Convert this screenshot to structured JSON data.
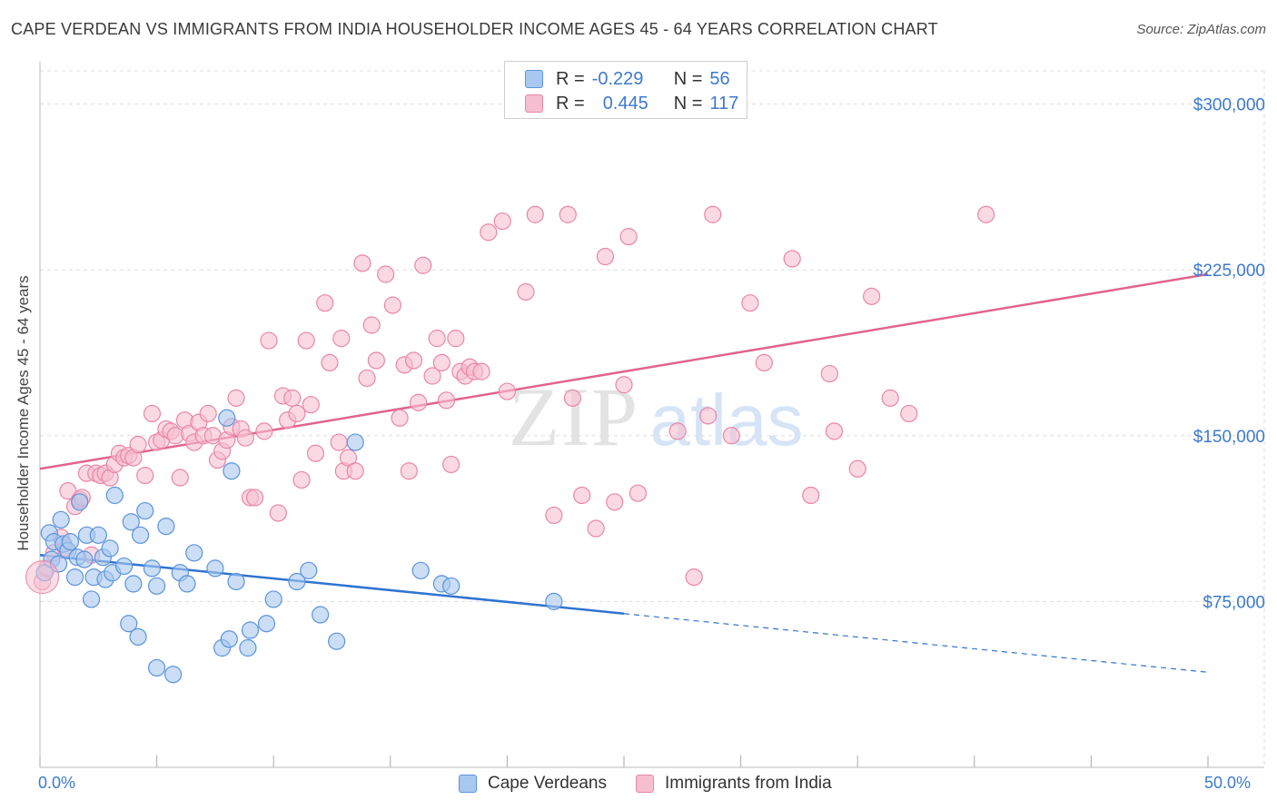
{
  "header": {
    "title": "CAPE VERDEAN VS IMMIGRANTS FROM INDIA HOUSEHOLDER INCOME AGES 45 - 64 YEARS CORRELATION CHART",
    "source": "Source: ZipAtlas.com"
  },
  "stats_legend": {
    "rows": [
      {
        "r_label": "R =",
        "r_value": "-0.229",
        "n_label": "N =",
        "n_value": "56"
      },
      {
        "r_label": "R =",
        "r_value": "0.445",
        "n_label": "N =",
        "n_value": "117"
      }
    ]
  },
  "watermark": {
    "part1": "ZIP",
    "part2": "atlas"
  },
  "colors": {
    "blue_fill": "#a9c8f0",
    "blue_stroke": "#5b93dc",
    "blue_line": "#2f74d0",
    "pink_fill": "#f6bfd0",
    "pink_stroke": "#e986a8",
    "pink_line": "#e0648f",
    "axis_text": "#3d79d0",
    "grid": "#dcdcdc"
  },
  "chart_data": {
    "type": "scatter",
    "title": "CAPE VERDEAN VS IMMIGRANTS FROM INDIA HOUSEHOLDER INCOME AGES 45 - 64 YEARS CORRELATION CHART",
    "xlabel": "",
    "ylabel": "Householder Income Ages 45 - 64 years",
    "xlim": [
      0,
      50
    ],
    "ylim": [
      0,
      315000
    ],
    "x_tick_labels": [
      "0.0%",
      "50.0%"
    ],
    "y_ticks": [
      75000,
      150000,
      225000,
      300000
    ],
    "y_tick_labels": [
      "$75,000",
      "$150,000",
      "$225,000",
      "$300,000"
    ],
    "grid": true,
    "legend_position": "bottom-center",
    "series": [
      {
        "name": "Cape Verdeans",
        "color": "#a9c8f0",
        "trend": {
          "x0": 0,
          "y0": 96000,
          "x1": 25,
          "y1": 69500,
          "dashed_to_x": 50,
          "dashed_to_y": 43000
        },
        "points": [
          [
            0.2,
            88000
          ],
          [
            0.4,
            106000
          ],
          [
            0.5,
            94000
          ],
          [
            0.6,
            102000
          ],
          [
            0.8,
            92000
          ],
          [
            0.9,
            112000
          ],
          [
            1.0,
            101000
          ],
          [
            1.2,
            98000
          ],
          [
            1.3,
            102000
          ],
          [
            1.5,
            86000
          ],
          [
            1.6,
            95000
          ],
          [
            1.7,
            120000
          ],
          [
            1.9,
            94000
          ],
          [
            2.0,
            105000
          ],
          [
            2.2,
            76000
          ],
          [
            2.3,
            86000
          ],
          [
            2.5,
            105000
          ],
          [
            2.7,
            95000
          ],
          [
            2.8,
            85000
          ],
          [
            3.0,
            99000
          ],
          [
            3.1,
            88000
          ],
          [
            3.2,
            123000
          ],
          [
            3.6,
            91000
          ],
          [
            3.8,
            65000
          ],
          [
            3.9,
            111000
          ],
          [
            4.0,
            83000
          ],
          [
            4.2,
            59000
          ],
          [
            4.3,
            105000
          ],
          [
            4.5,
            116000
          ],
          [
            4.8,
            90000
          ],
          [
            5.0,
            82000
          ],
          [
            5.0,
            45000
          ],
          [
            5.4,
            109000
          ],
          [
            5.7,
            42000
          ],
          [
            6.0,
            88000
          ],
          [
            6.3,
            83000
          ],
          [
            6.6,
            97000
          ],
          [
            7.5,
            90000
          ],
          [
            7.8,
            54000
          ],
          [
            8.1,
            58000
          ],
          [
            8.2,
            134000
          ],
          [
            8.4,
            84000
          ],
          [
            8.9,
            54000
          ],
          [
            9.0,
            62000
          ],
          [
            9.7,
            65000
          ],
          [
            10.0,
            76000
          ],
          [
            11.0,
            84000
          ],
          [
            11.5,
            89000
          ],
          [
            12.0,
            69000
          ],
          [
            12.7,
            57000
          ],
          [
            13.5,
            147000
          ],
          [
            16.3,
            89000
          ],
          [
            17.2,
            83000
          ],
          [
            17.6,
            82000
          ],
          [
            8.0,
            158000
          ],
          [
            22.0,
            75000
          ]
        ]
      },
      {
        "name": "Immigrants from India",
        "color": "#f6bfd0",
        "trend": {
          "x0": 0,
          "y0": 135000,
          "x1": 50,
          "y1": 223000
        },
        "points": [
          [
            0.1,
            84000
          ],
          [
            0.3,
            90000
          ],
          [
            0.6,
            97000
          ],
          [
            0.9,
            104000
          ],
          [
            1.1,
            99000
          ],
          [
            1.2,
            125000
          ],
          [
            1.5,
            118000
          ],
          [
            1.7,
            121000
          ],
          [
            1.8,
            122000
          ],
          [
            2.0,
            133000
          ],
          [
            2.2,
            96000
          ],
          [
            2.4,
            133000
          ],
          [
            2.6,
            132000
          ],
          [
            2.8,
            133000
          ],
          [
            3.0,
            131000
          ],
          [
            3.2,
            137000
          ],
          [
            3.4,
            142000
          ],
          [
            3.6,
            140000
          ],
          [
            3.8,
            141000
          ],
          [
            4.0,
            140000
          ],
          [
            4.2,
            146000
          ],
          [
            4.5,
            132000
          ],
          [
            4.8,
            160000
          ],
          [
            5.0,
            147000
          ],
          [
            5.2,
            148000
          ],
          [
            5.4,
            153000
          ],
          [
            5.6,
            152000
          ],
          [
            5.8,
            150000
          ],
          [
            6.0,
            131000
          ],
          [
            6.2,
            157000
          ],
          [
            6.4,
            151000
          ],
          [
            6.6,
            147000
          ],
          [
            6.8,
            156000
          ],
          [
            7.0,
            150000
          ],
          [
            7.2,
            160000
          ],
          [
            7.4,
            150000
          ],
          [
            7.6,
            139000
          ],
          [
            7.8,
            143000
          ],
          [
            8.0,
            148000
          ],
          [
            8.2,
            154000
          ],
          [
            8.4,
            167000
          ],
          [
            8.6,
            153000
          ],
          [
            8.8,
            149000
          ],
          [
            9.0,
            122000
          ],
          [
            9.2,
            122000
          ],
          [
            9.6,
            152000
          ],
          [
            9.8,
            193000
          ],
          [
            10.2,
            115000
          ],
          [
            10.4,
            168000
          ],
          [
            10.6,
            157000
          ],
          [
            10.8,
            167000
          ],
          [
            11.0,
            160000
          ],
          [
            11.2,
            130000
          ],
          [
            11.4,
            193000
          ],
          [
            11.6,
            164000
          ],
          [
            11.8,
            142000
          ],
          [
            12.2,
            210000
          ],
          [
            12.4,
            183000
          ],
          [
            12.8,
            147000
          ],
          [
            12.9,
            194000
          ],
          [
            13.0,
            134000
          ],
          [
            13.2,
            140000
          ],
          [
            13.5,
            134000
          ],
          [
            13.8,
            228000
          ],
          [
            14.0,
            176000
          ],
          [
            14.2,
            200000
          ],
          [
            14.4,
            184000
          ],
          [
            14.8,
            223000
          ],
          [
            15.1,
            209000
          ],
          [
            15.4,
            158000
          ],
          [
            15.6,
            182000
          ],
          [
            15.8,
            134000
          ],
          [
            16.0,
            184000
          ],
          [
            16.2,
            165000
          ],
          [
            16.4,
            227000
          ],
          [
            16.8,
            177000
          ],
          [
            17.0,
            194000
          ],
          [
            17.2,
            183000
          ],
          [
            17.4,
            166000
          ],
          [
            17.6,
            137000
          ],
          [
            17.8,
            194000
          ],
          [
            18.0,
            179000
          ],
          [
            18.2,
            177000
          ],
          [
            18.4,
            181000
          ],
          [
            18.6,
            179000
          ],
          [
            18.9,
            179000
          ],
          [
            19.2,
            242000
          ],
          [
            19.8,
            247000
          ],
          [
            20.0,
            170000
          ],
          [
            20.8,
            215000
          ],
          [
            21.2,
            250000
          ],
          [
            22.0,
            114000
          ],
          [
            22.6,
            250000
          ],
          [
            22.8,
            167000
          ],
          [
            23.2,
            123000
          ],
          [
            23.8,
            108000
          ],
          [
            24.2,
            231000
          ],
          [
            24.6,
            120000
          ],
          [
            25.0,
            173000
          ],
          [
            25.2,
            240000
          ],
          [
            25.6,
            124000
          ],
          [
            27.3,
            152000
          ],
          [
            28.0,
            86000
          ],
          [
            28.6,
            159000
          ],
          [
            28.8,
            250000
          ],
          [
            29.6,
            150000
          ],
          [
            30.4,
            210000
          ],
          [
            31.0,
            183000
          ],
          [
            32.2,
            230000
          ],
          [
            33.0,
            123000
          ],
          [
            33.8,
            178000
          ],
          [
            34.0,
            152000
          ],
          [
            35.0,
            135000
          ],
          [
            35.6,
            213000
          ],
          [
            36.4,
            167000
          ],
          [
            37.2,
            160000
          ],
          [
            40.5,
            250000
          ]
        ]
      }
    ]
  }
}
